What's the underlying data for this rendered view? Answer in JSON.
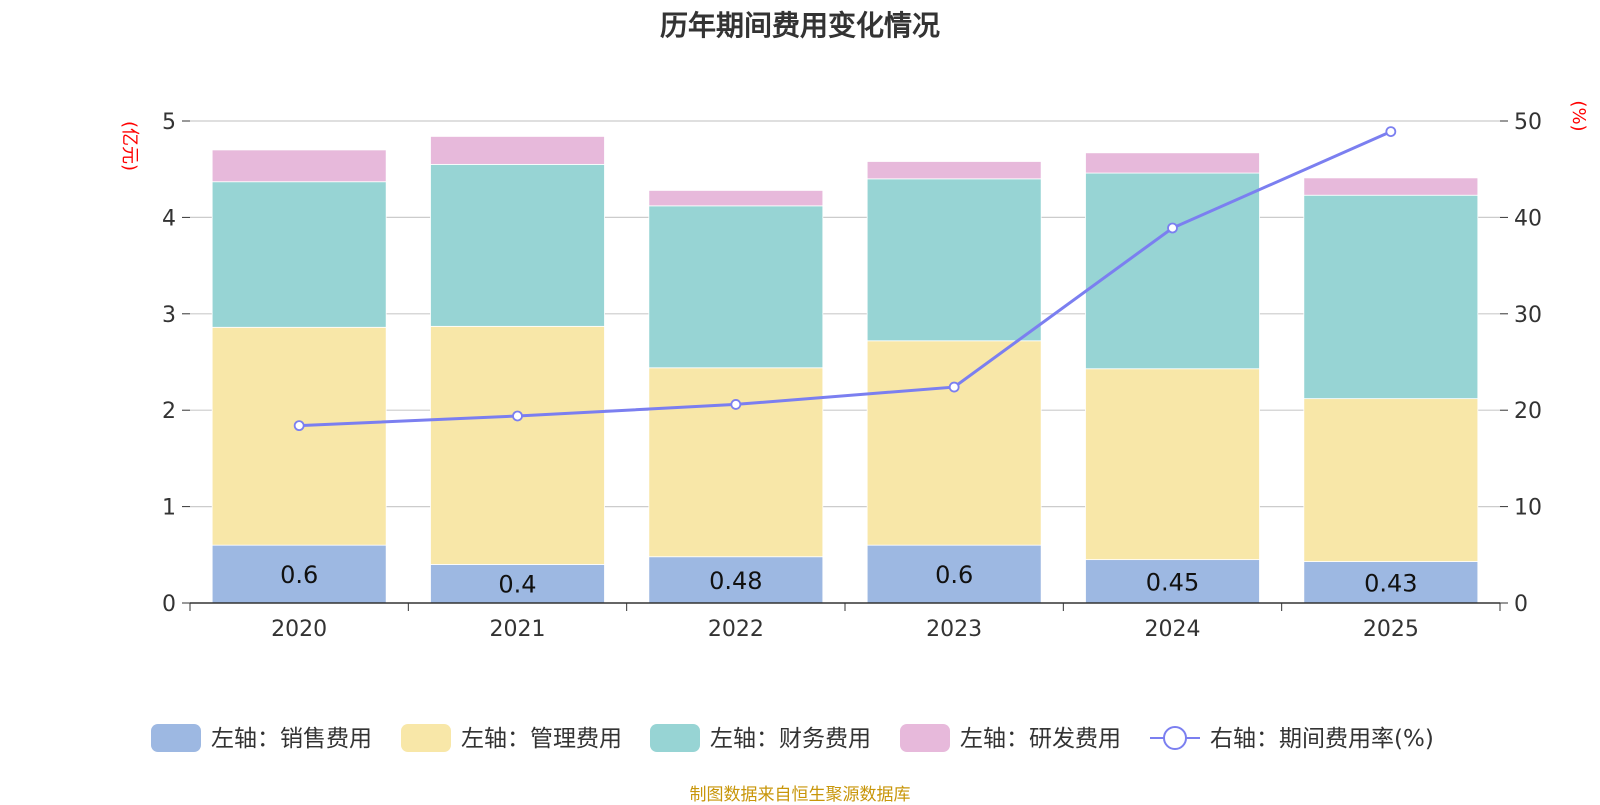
{
  "chart_data": {
    "type": "bar",
    "title": "历年期间费用变化情况",
    "categories": [
      "2020",
      "2021",
      "2022",
      "2023",
      "2024",
      "2025"
    ],
    "series": [
      {
        "name": "左轴：销售费用",
        "axis": "left",
        "color": "#9db8e2",
        "values": [
          0.6,
          0.4,
          0.48,
          0.6,
          0.45,
          0.43
        ],
        "labels": [
          "0.6",
          "0.4",
          "0.48",
          "0.6",
          "0.45",
          "0.43"
        ]
      },
      {
        "name": "左轴：管理费用",
        "axis": "left",
        "color": "#f8e7a8",
        "values": [
          2.26,
          2.47,
          1.96,
          2.12,
          1.98,
          1.69
        ]
      },
      {
        "name": "左轴：财务费用",
        "axis": "left",
        "color": "#97d4d4",
        "values": [
          1.51,
          1.68,
          1.68,
          1.68,
          2.03,
          2.11
        ]
      },
      {
        "name": "左轴：研发费用",
        "axis": "left",
        "color": "#e7b9db",
        "values": [
          0.33,
          0.29,
          0.16,
          0.18,
          0.21,
          0.18
        ]
      }
    ],
    "line": {
      "name": "右轴：期间费用率(%)",
      "axis": "right",
      "color": "#7b7ff0",
      "values": [
        18.4,
        19.4,
        20.6,
        22.4,
        38.9,
        48.9
      ]
    },
    "y_left": {
      "label": "(亿元)",
      "min": 0,
      "max": 5,
      "ticks": [
        "0",
        "1",
        "2",
        "3",
        "4",
        "5"
      ]
    },
    "y_right": {
      "label": "(%)",
      "min": 0,
      "max": 50,
      "ticks": [
        "0",
        "10",
        "20",
        "30",
        "40",
        "50"
      ]
    },
    "grid": true,
    "legend": "bottom-center"
  },
  "colors": {
    "axis_label": "#ff0000",
    "source": "#c8960a",
    "grid": "#cccccc"
  },
  "source": "制图数据来自恒生聚源数据库"
}
